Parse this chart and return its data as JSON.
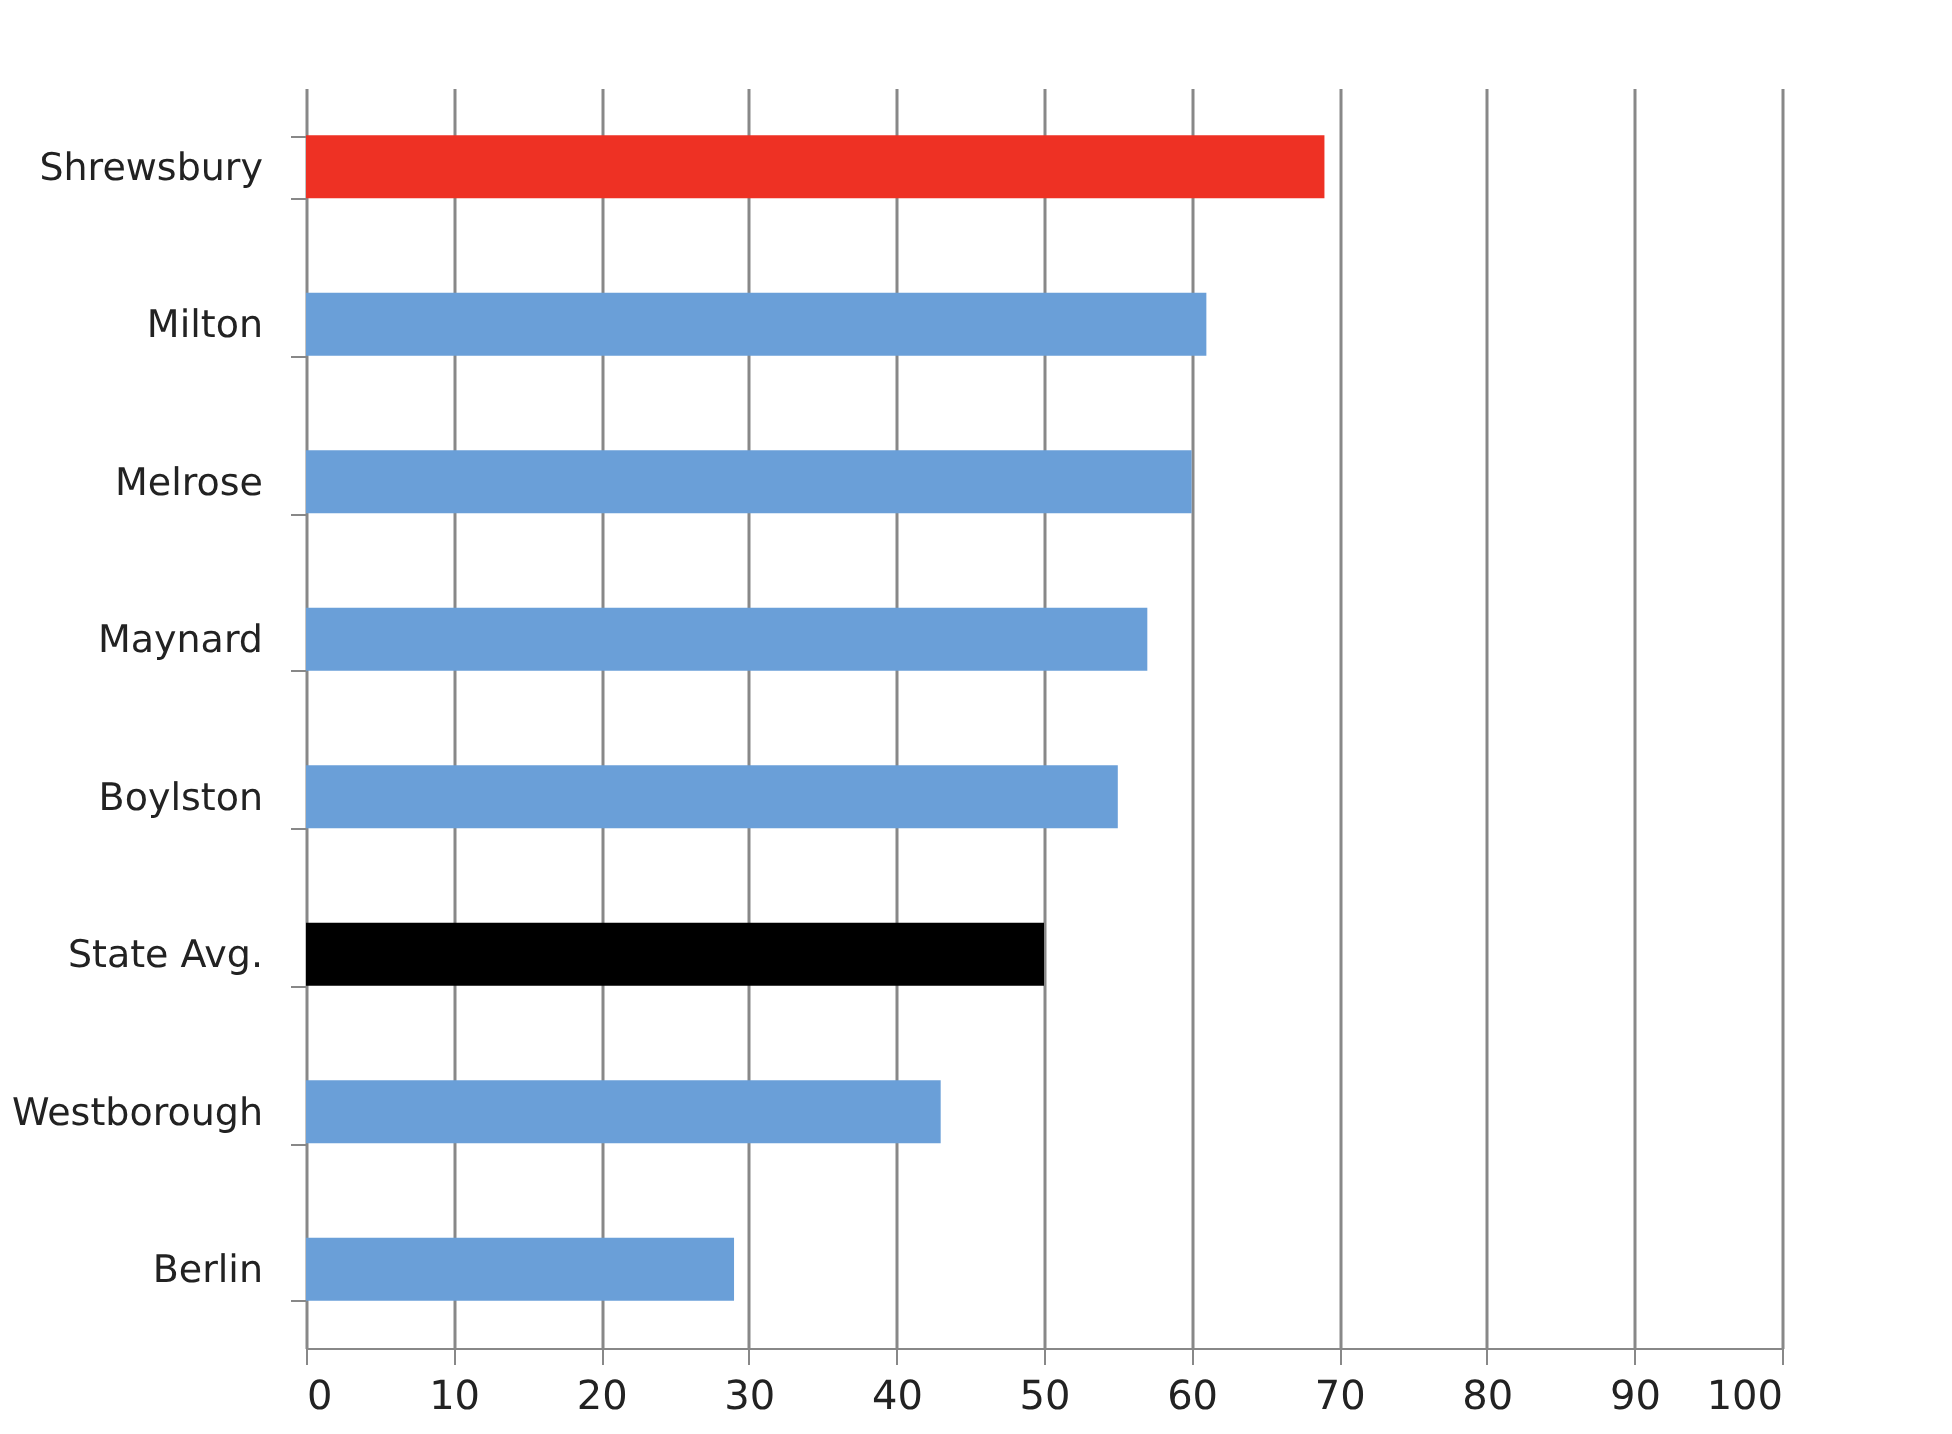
{
  "chart_data": {
    "type": "bar",
    "orientation": "horizontal",
    "categories": [
      "Shrewsbury",
      "Milton",
      "Melrose",
      "Maynard",
      "Boylston",
      "State Avg.",
      "Westborough",
      "Berlin"
    ],
    "values": [
      69,
      61,
      60,
      57,
      55,
      50,
      43,
      29
    ],
    "colors": [
      "#ee3124",
      "#6a9fd8",
      "#6a9fd8",
      "#6a9fd8",
      "#6a9fd8",
      "#000000",
      "#6a9fd8",
      "#6a9fd8"
    ],
    "xlim": [
      0,
      100
    ],
    "xticks": [
      0,
      10,
      20,
      30,
      40,
      50,
      60,
      70,
      80,
      90,
      100
    ],
    "grid": "x"
  }
}
